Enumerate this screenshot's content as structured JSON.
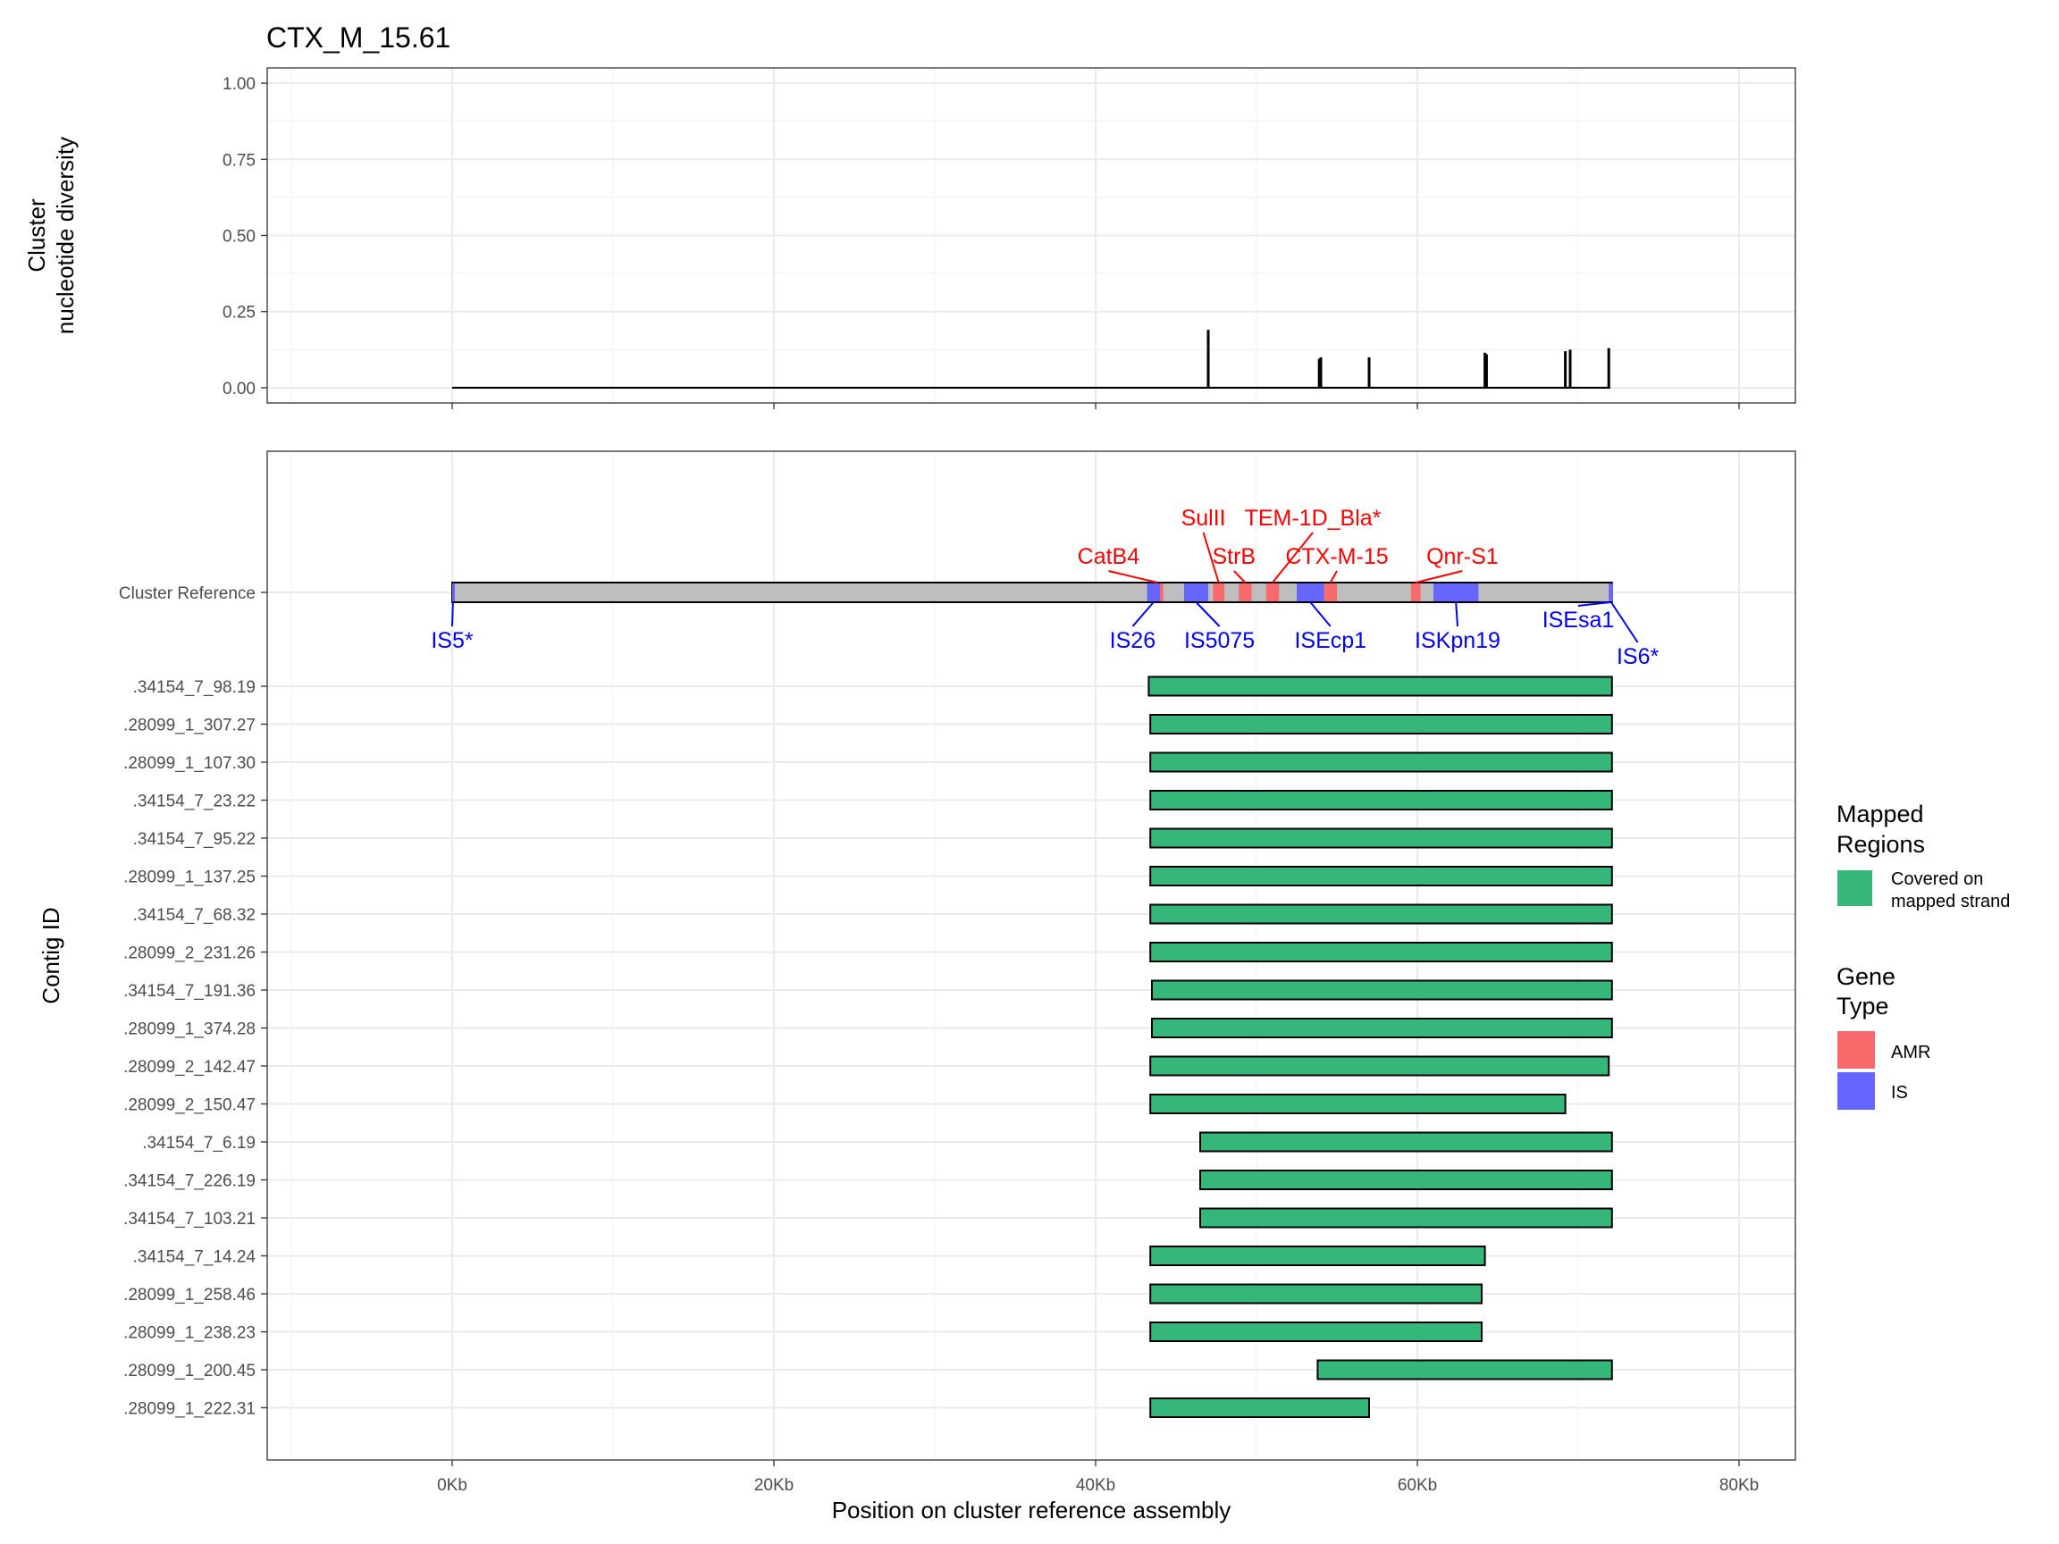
{
  "title": "CTX_M_15.61",
  "top_panel": {
    "ylabel_line1": "Cluster",
    "ylabel_line2": "nucleotide diversity",
    "yticks": [
      "0.00",
      "0.25",
      "0.50",
      "0.75",
      "1.00"
    ]
  },
  "bottom_panel": {
    "ylabel": "Contig ID",
    "xlabel": "Position on cluster reference assembly",
    "xticks": [
      "0Kb",
      "20Kb",
      "40Kb",
      "60Kb",
      "80Kb"
    ]
  },
  "legend": {
    "mapped_title_1": "Mapped",
    "mapped_title_2": "Regions",
    "covered_1": "Covered on",
    "covered_2": "mapped strand",
    "gene_title_1": "Gene",
    "gene_title_2": "Type",
    "amr": "AMR",
    "is": "IS"
  },
  "colors": {
    "covered": "#35B779",
    "amr": "#F8696B",
    "is": "#6666FF",
    "amr_label": "#FF0000",
    "is_label": "#0000FF",
    "reference": "#BEBEBE"
  },
  "chart_data": [
    {
      "type": "line",
      "panel": "top",
      "title": "CTX_M_15.61",
      "ylabel": "Cluster nucleotide diversity",
      "xlim": [
        -11.5,
        83.5
      ],
      "ylim": [
        -0.05,
        1.05
      ],
      "baseline": {
        "x": [
          0,
          72
        ],
        "y": 0
      },
      "spikes": [
        {
          "x": 47.0,
          "y": 0.19
        },
        {
          "x": 53.9,
          "y": 0.095
        },
        {
          "x": 54.0,
          "y": 0.1
        },
        {
          "x": 57.0,
          "y": 0.1
        },
        {
          "x": 64.2,
          "y": 0.115
        },
        {
          "x": 64.3,
          "y": 0.11
        },
        {
          "x": 69.2,
          "y": 0.12
        },
        {
          "x": 69.5,
          "y": 0.125
        },
        {
          "x": 71.9,
          "y": 0.13
        }
      ]
    },
    {
      "type": "bar",
      "panel": "bottom",
      "xlabel": "Position on cluster reference assembly",
      "ylabel": "Contig ID",
      "xlim": [
        -11.5,
        83.5
      ],
      "reference": {
        "label": "Cluster Reference",
        "start": 0,
        "end": 72.1,
        "genes": [
          {
            "name": "CatB4",
            "type": "AMR",
            "start": 43.5,
            "end": 44.2,
            "label_x": 40.8,
            "label_row": 2
          },
          {
            "name": "SulII",
            "type": "AMR",
            "start": 47.3,
            "end": 48.0,
            "label_x": 46.7,
            "label_row": 4
          },
          {
            "name": "StrB",
            "type": "AMR",
            "start": 48.9,
            "end": 49.7,
            "label_x": 48.6,
            "label_row": 2
          },
          {
            "name": "TEM-1D_Bla*",
            "type": "AMR",
            "start": 50.6,
            "end": 51.4,
            "label_x": 53.5,
            "label_row": 4
          },
          {
            "name": "CTX-M-15",
            "type": "AMR",
            "start": 54.2,
            "end": 55.0,
            "label_x": 55.0,
            "label_row": 2
          },
          {
            "name": "Qnr-S1",
            "type": "AMR",
            "start": 59.6,
            "end": 60.2,
            "label_x": 62.8,
            "label_row": 2
          },
          {
            "name": "IS5*",
            "type": "IS",
            "start": 0,
            "end": 0.1,
            "label_x": 0.0,
            "label_row": 1
          },
          {
            "name": "IS26",
            "type": "IS",
            "start": 43.2,
            "end": 44.0,
            "label_x": 42.3,
            "label_row": 1
          },
          {
            "name": "IS5075",
            "type": "IS",
            "start": 45.5,
            "end": 47.0,
            "label_x": 47.7,
            "label_row": 1
          },
          {
            "name": "ISEcp1",
            "type": "IS",
            "start": 52.5,
            "end": 54.2,
            "label_x": 54.6,
            "label_row": 1
          },
          {
            "name": "ISKpn19",
            "type": "IS",
            "start": 61.0,
            "end": 63.8,
            "label_x": 62.5,
            "label_row": 1
          },
          {
            "name": "ISEsa1",
            "type": "IS",
            "start": 71.9,
            "end": 72.1,
            "label_x": 70.0,
            "label_row": 0
          },
          {
            "name": "IS6*",
            "type": "IS",
            "start": 72.0,
            "end": 72.1,
            "label_x": 73.7,
            "label_row": 2
          }
        ]
      },
      "contigs": [
        {
          "id": ".34154_7_98.19",
          "start": 43.3,
          "end": 72.1
        },
        {
          "id": ".28099_1_307.27",
          "start": 43.4,
          "end": 72.1
        },
        {
          "id": ".28099_1_107.30",
          "start": 43.4,
          "end": 72.1
        },
        {
          "id": ".34154_7_23.22",
          "start": 43.4,
          "end": 72.1
        },
        {
          "id": ".34154_7_95.22",
          "start": 43.4,
          "end": 72.1
        },
        {
          "id": ".28099_1_137.25",
          "start": 43.4,
          "end": 72.1
        },
        {
          "id": ".34154_7_68.32",
          "start": 43.4,
          "end": 72.1
        },
        {
          "id": ".28099_2_231.26",
          "start": 43.4,
          "end": 72.1
        },
        {
          "id": ".34154_7_191.36",
          "start": 43.5,
          "end": 72.1
        },
        {
          "id": ".28099_1_374.28",
          "start": 43.5,
          "end": 72.1
        },
        {
          "id": ".28099_2_142.47",
          "start": 43.4,
          "end": 71.9
        },
        {
          "id": ".28099_2_150.47",
          "start": 43.4,
          "end": 69.2
        },
        {
          "id": ".34154_7_6.19",
          "start": 46.5,
          "end": 72.1
        },
        {
          "id": ".34154_7_226.19",
          "start": 46.5,
          "end": 72.1
        },
        {
          "id": ".34154_7_103.21",
          "start": 46.5,
          "end": 72.1
        },
        {
          "id": ".34154_7_14.24",
          "start": 43.4,
          "end": 64.2
        },
        {
          "id": ".28099_1_258.46",
          "start": 43.4,
          "end": 64.0
        },
        {
          "id": ".28099_1_238.23",
          "start": 43.4,
          "end": 64.0
        },
        {
          "id": ".28099_1_200.45",
          "start": 53.8,
          "end": 72.1
        },
        {
          "id": ".28099_1_222.31",
          "start": 43.4,
          "end": 57.0
        }
      ]
    }
  ]
}
